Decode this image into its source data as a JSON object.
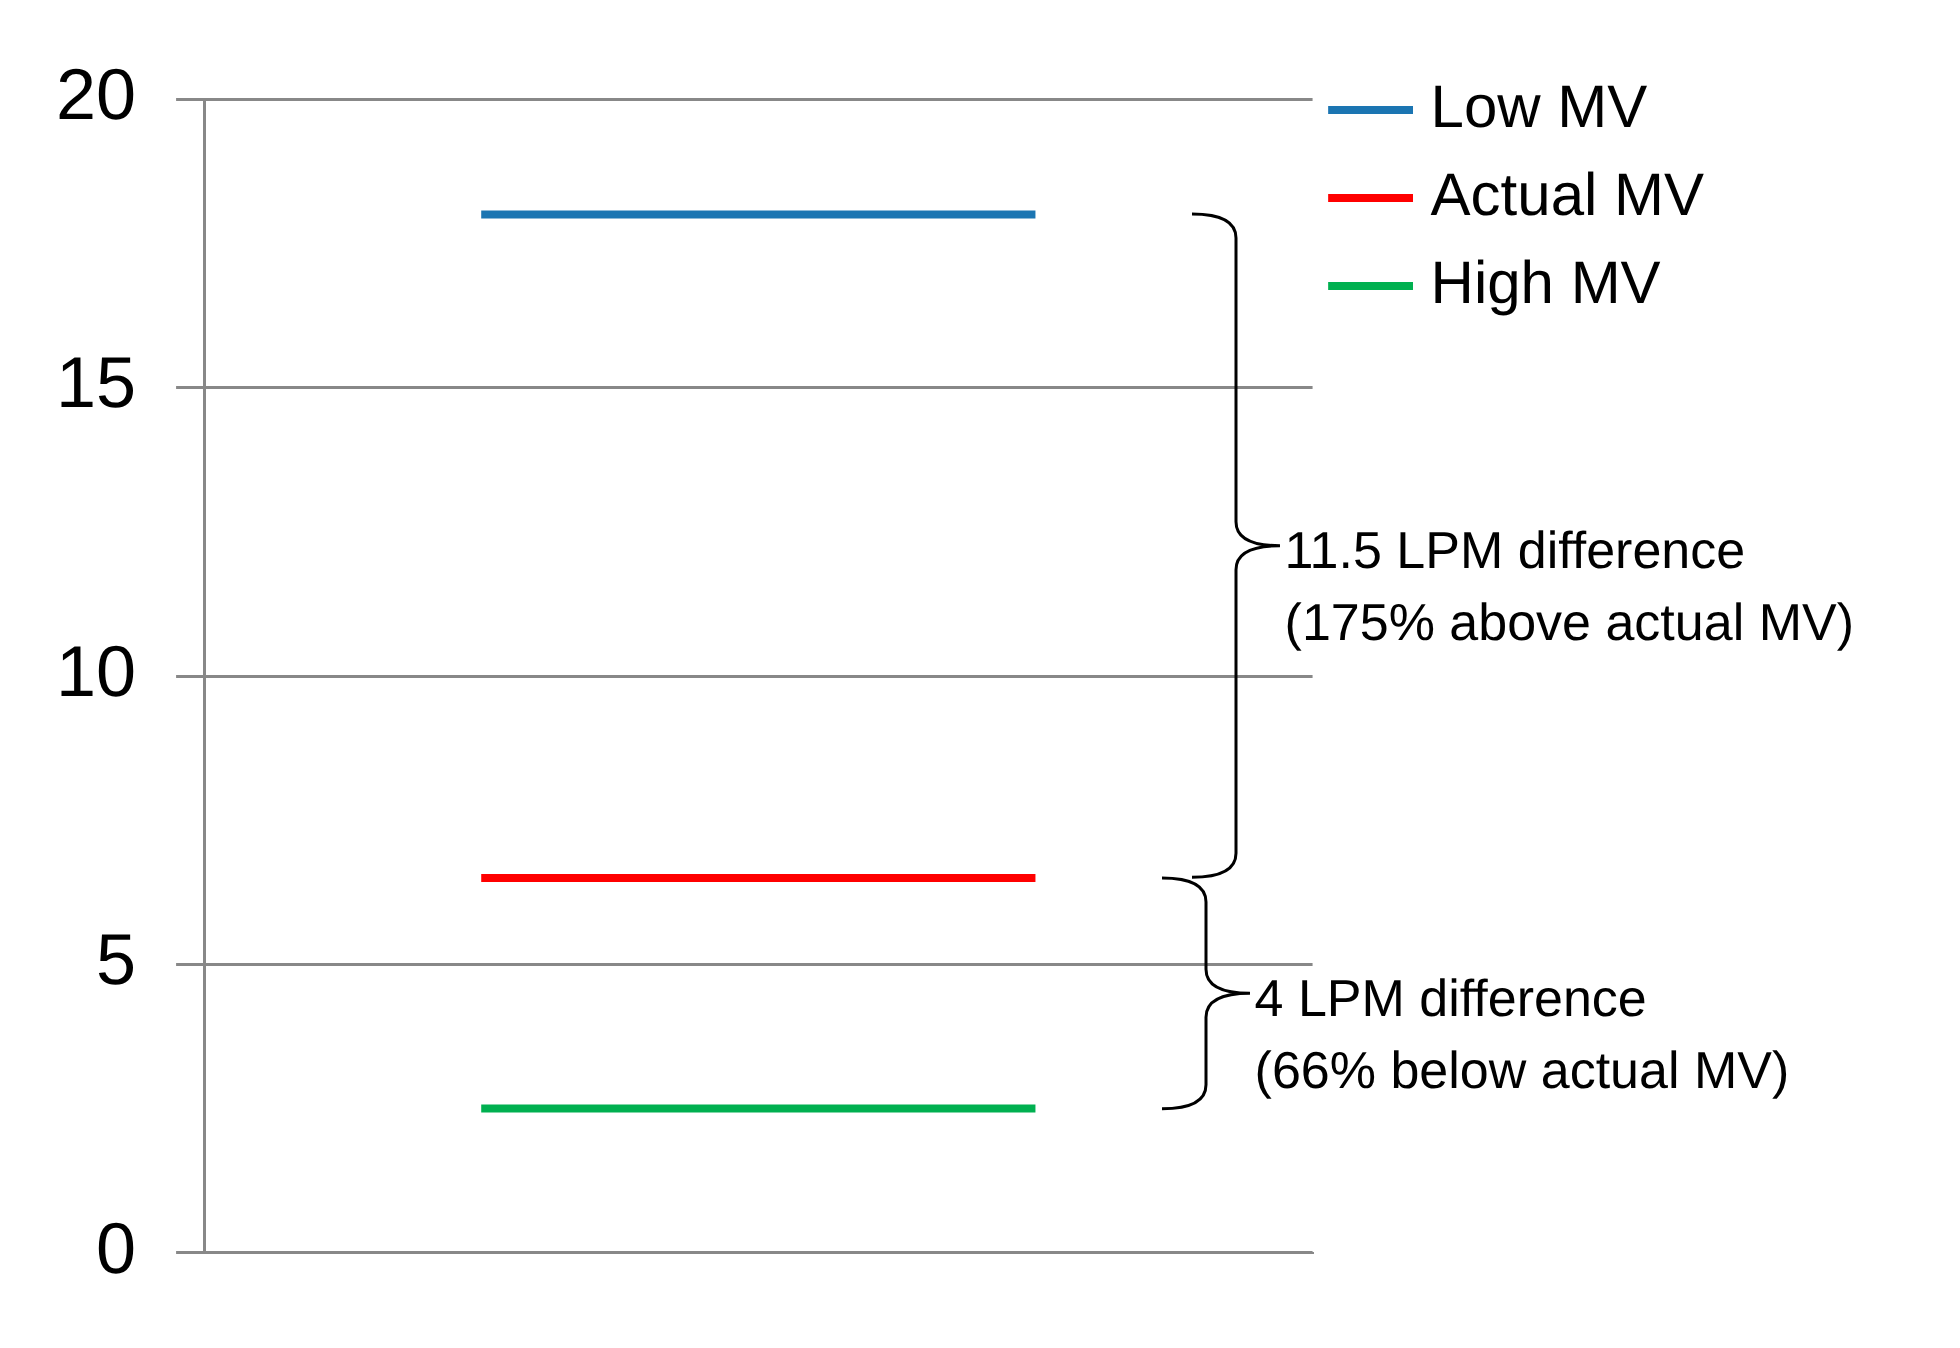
{
  "chart_data": {
    "type": "line",
    "categories": [
      null,
      null
    ],
    "series": [
      {
        "name": "Low MV",
        "color": "#1b75b2",
        "values": [
          18,
          18
        ]
      },
      {
        "name": "Actual MV",
        "color": "#ff0000",
        "values": [
          6.5,
          6.5
        ]
      },
      {
        "name": "High MV",
        "color": "#00b050",
        "values": [
          2.5,
          2.5
        ]
      }
    ],
    "ylim": [
      0,
      20
    ],
    "yticks": [
      0,
      5,
      10,
      15,
      20
    ],
    "grid": "y",
    "legend": "top right",
    "annotations": [
      "11.5 LPM difference\n(175% above actual MV)",
      "4 LPM difference\n(66% below actual MV)"
    ]
  }
}
